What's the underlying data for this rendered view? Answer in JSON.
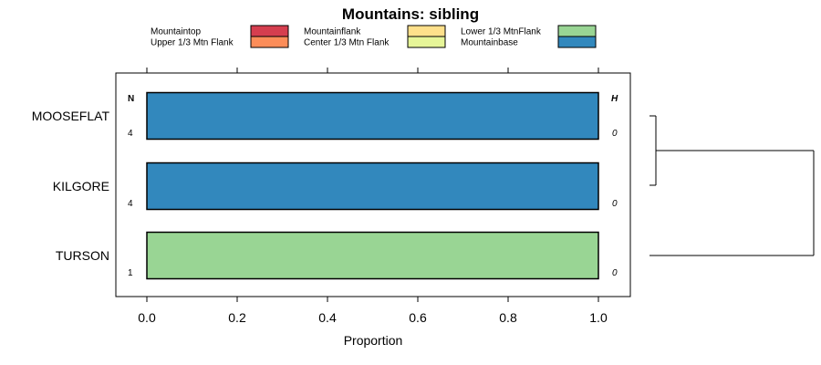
{
  "chart_data": {
    "type": "bar",
    "orientation": "horizontal",
    "stacked": true,
    "title": "Mountains: sibling",
    "xlabel": "Proportion",
    "xlim": [
      -0.07,
      1.07
    ],
    "x_ticks": [
      0.0,
      0.2,
      0.4,
      0.6,
      0.8,
      1.0
    ],
    "x_tick_labels": [
      "0.0",
      "0.2",
      "0.4",
      "0.6",
      "0.8",
      "1.0"
    ],
    "categories": [
      "MOOSEFLAT",
      "KILGORE",
      "TURSON"
    ],
    "n_header": "N",
    "h_header": "H",
    "n_values": [
      "4",
      "4",
      "1"
    ],
    "h_values": [
      "0",
      "0",
      "0"
    ],
    "legend": [
      {
        "label": "Mountaintop",
        "color": "#d53e4f"
      },
      {
        "label": "Upper 1/3 Mtn Flank",
        "color": "#fc8d59"
      },
      {
        "label": "Mountainflank",
        "color": "#fee08b"
      },
      {
        "label": "Center 1/3 Mtn Flank",
        "color": "#e6f598"
      },
      {
        "label": "Lower 1/3 MtnFlank",
        "color": "#99d594"
      },
      {
        "label": "Mountainbase",
        "color": "#3288bd"
      }
    ],
    "series": [
      {
        "name": "Mountaintop",
        "values": [
          0,
          0,
          0
        ]
      },
      {
        "name": "Upper 1/3 Mtn Flank",
        "values": [
          0,
          0,
          0
        ]
      },
      {
        "name": "Mountainflank",
        "values": [
          0,
          0,
          0
        ]
      },
      {
        "name": "Center 1/3 Mtn Flank",
        "values": [
          0,
          0,
          0
        ]
      },
      {
        "name": "Lower 1/3 MtnFlank",
        "values": [
          0,
          0,
          1.0
        ]
      },
      {
        "name": "Mountainbase",
        "values": [
          1.0,
          1.0,
          0
        ]
      }
    ],
    "dendrogram": "MOOSEFLAT and KILGORE join first; TURSON joins at root"
  }
}
